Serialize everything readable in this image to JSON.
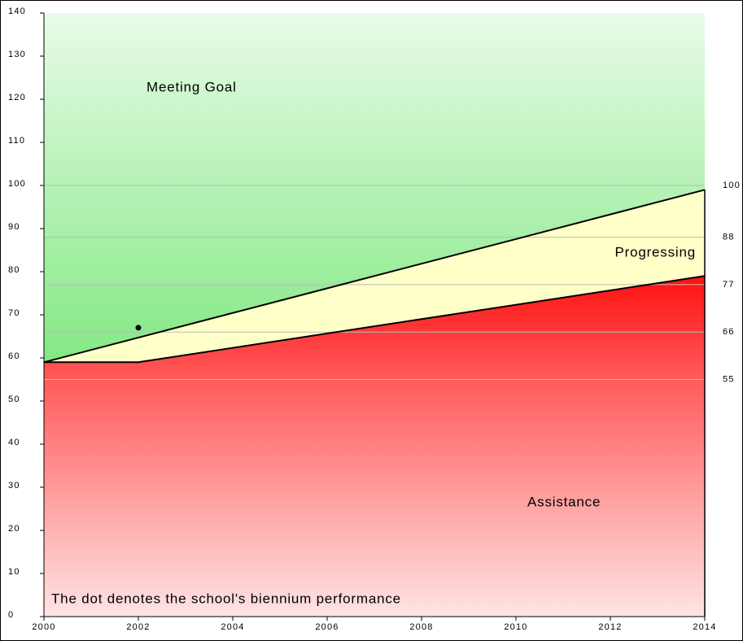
{
  "chart_data": {
    "type": "line",
    "annotations": [
      "Meeting Goal",
      "Progressing",
      "Assistance",
      "The dot denotes the school's biennium performance"
    ],
    "series": [
      {
        "color": "#000000",
        "x": [
          2000,
          2014
        ],
        "values": [
          59,
          99
        ]
      },
      {
        "color": "#000000",
        "x": [
          2000,
          2002,
          2014
        ],
        "values": [
          59,
          59,
          79
        ]
      }
    ],
    "points": {
      "color": "#000000",
      "x": [
        2002
      ],
      "values": [
        67
      ]
    },
    "xlim": [
      2000,
      2014
    ],
    "xticks": [
      2000,
      2002,
      2004,
      2006,
      2008,
      2010,
      2012,
      2014
    ],
    "ylim": [
      0,
      140
    ],
    "yticks": [
      0,
      10,
      20,
      30,
      40,
      50,
      60,
      70,
      80,
      90,
      100,
      110,
      120,
      130,
      140
    ],
    "y2lim": [
      0,
      140
    ],
    "y2ticks": [
      100,
      88,
      77,
      66,
      55
    ],
    "grid": true
  }
}
